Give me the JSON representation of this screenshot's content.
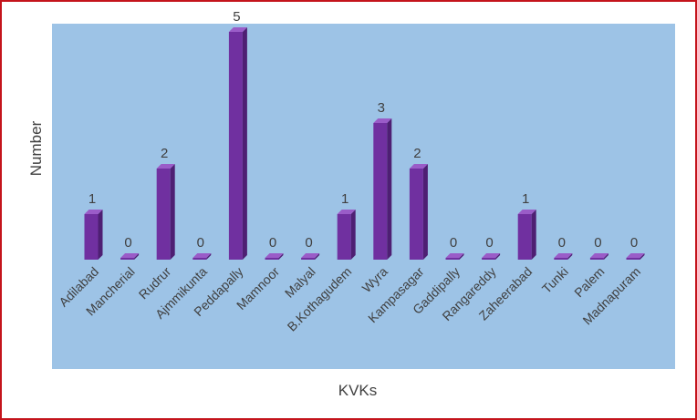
{
  "chart_data": {
    "type": "bar",
    "title": "",
    "xlabel": "KVKs",
    "ylabel": "Number",
    "categories": [
      "Adilabad",
      "Mancherial",
      "Rudrur",
      "Ajmmikunta",
      "Peddapally",
      "Mamnoor",
      "Malyal",
      "B.Kothagudem",
      "Wyra",
      "Kampasagar",
      "Gaddipally",
      "Rangareddy",
      "Zaheerabad",
      "Tunki",
      "Palem",
      "Madnapuram"
    ],
    "values": [
      1,
      0,
      2,
      0,
      5,
      0,
      0,
      1,
      3,
      2,
      0,
      0,
      1,
      0,
      0,
      0
    ],
    "ylim": [
      0,
      5
    ],
    "grid": false,
    "legend": "none",
    "data_labels": true,
    "colors": {
      "bar_front": "#7030a0",
      "bar_side": "#4e1f73",
      "bar_top": "#9a5cc8",
      "plot_background": "#9dc3e6",
      "border": "#c4141c",
      "text": "#404040"
    }
  }
}
